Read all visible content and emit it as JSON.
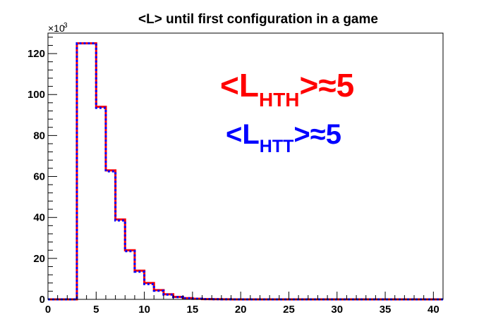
{
  "chart_data": {
    "type": "step",
    "title": "<L> until first configuration in a game",
    "xlabel": "",
    "ylabel": "",
    "y_multiplier_label": "×10",
    "y_multiplier_exponent": "3",
    "xlim": [
      0,
      41
    ],
    "ylim": [
      0,
      130
    ],
    "x_ticks": [
      0,
      5,
      10,
      15,
      20,
      25,
      30,
      35,
      40
    ],
    "y_ticks": [
      0,
      20,
      40,
      60,
      80,
      100,
      120
    ],
    "grid": false,
    "bin_edges": [
      0,
      1,
      2,
      3,
      4,
      5,
      6,
      7,
      8,
      9,
      10,
      11,
      12,
      13,
      14,
      15,
      16,
      17,
      18,
      19,
      20,
      21,
      22,
      23,
      24,
      25,
      26,
      27,
      28,
      29,
      30,
      31,
      32,
      33,
      34,
      35,
      36,
      37,
      38,
      39,
      40,
      41
    ],
    "series": [
      {
        "name": "HTH",
        "color": "#ff0000",
        "values": [
          0,
          0,
          0,
          125,
          125,
          94,
          63,
          39,
          24,
          14,
          8,
          4.5,
          2.5,
          1.2,
          0.6,
          0.3,
          0.15,
          0.08,
          0.04,
          0.02,
          0.01,
          0,
          0,
          0,
          0,
          0,
          0,
          0,
          0,
          0,
          0,
          0,
          0,
          0,
          0,
          0,
          0,
          0,
          0,
          0,
          0
        ]
      },
      {
        "name": "HTT",
        "color": "#0000ff",
        "values": [
          0,
          0,
          0,
          125,
          125,
          93.5,
          62.5,
          38.5,
          23.5,
          13.5,
          7.5,
          4.2,
          2.3,
          1.1,
          0.55,
          0.28,
          0.14,
          0.07,
          0.04,
          0.02,
          0.01,
          0,
          0,
          0,
          0,
          0,
          0,
          0,
          0,
          0,
          0,
          0,
          0,
          0,
          0,
          0,
          0,
          0,
          0,
          0,
          0
        ]
      }
    ],
    "annotations": [
      {
        "main": "<L",
        "sub": "HTH",
        "suffix": ">≈5",
        "color": "#ff0000"
      },
      {
        "main": "<L",
        "sub": "HTT",
        "suffix": ">≈5",
        "color": "#0000ff"
      }
    ]
  }
}
